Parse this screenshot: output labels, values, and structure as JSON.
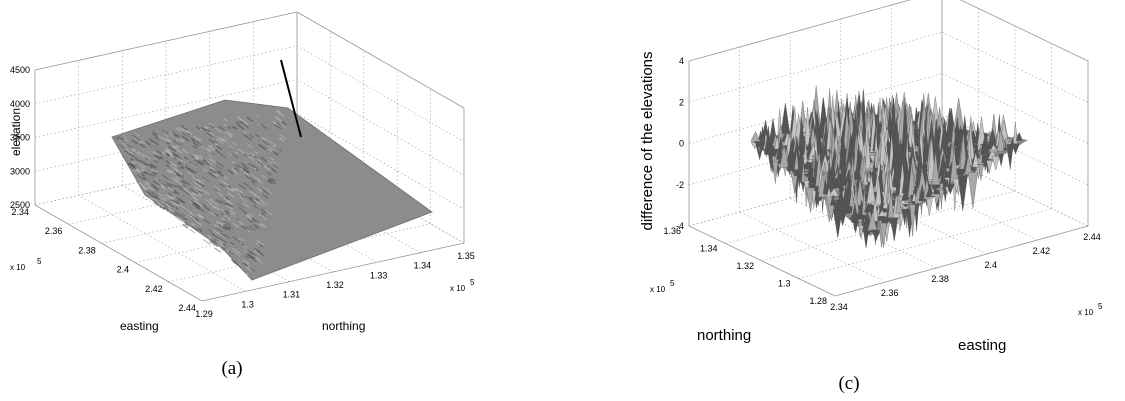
{
  "chart_data": [
    {
      "type": "surface",
      "panel_label": "(a)",
      "xlabel": "easting",
      "ylabel": "northing",
      "zlabel": "elevation",
      "easting_ticks": [
        "2.34",
        "2.36",
        "2.38",
        "2.4",
        "2.42",
        "2.44"
      ],
      "easting_multiplier": "x 10",
      "easting_exponent": "5",
      "northing_ticks": [
        "1.29",
        "1.3",
        "1.31",
        "1.32",
        "1.33",
        "1.34",
        "1.35"
      ],
      "northing_multiplier": "x 10",
      "northing_exponent": "5",
      "elevation_ticks": [
        "2500",
        "3000",
        "3500",
        "4000",
        "4500"
      ],
      "easting_range": [
        2.34,
        2.44
      ],
      "northing_range": [
        1.29,
        1.35
      ],
      "elevation_range": [
        2500,
        4500
      ],
      "grid": true,
      "surface_color": "#8c8c8c"
    },
    {
      "type": "surface",
      "panel_label": "(c)",
      "xlabel": "easting",
      "ylabel": "northing",
      "zlabel": "difference of the elevations",
      "easting_ticks": [
        "2.34",
        "2.36",
        "2.38",
        "2.4",
        "2.42",
        "2.44"
      ],
      "easting_multiplier": "x 10",
      "easting_exponent": "5",
      "northing_ticks": [
        "1.28",
        "1.3",
        "1.32",
        "1.34",
        "1.36"
      ],
      "northing_multiplier": "x 10",
      "northing_exponent": "5",
      "z_ticks": [
        "-4",
        "-2",
        "0",
        "2",
        "4"
      ],
      "easting_range": [
        2.34,
        2.44
      ],
      "northing_range": [
        1.28,
        1.36
      ],
      "z_range": [
        -4,
        4
      ],
      "grid": true,
      "surface_color": "#8c8c8c"
    }
  ]
}
